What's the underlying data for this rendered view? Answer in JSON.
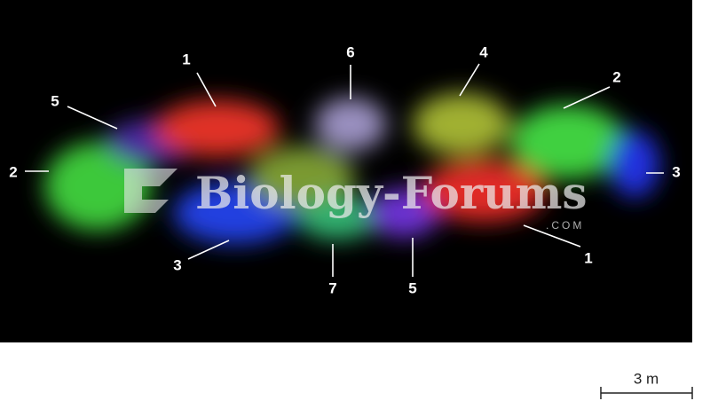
{
  "image": {
    "labels": [
      "1",
      "6",
      "4",
      "2",
      "5",
      "2",
      "3",
      "3",
      "7",
      "5",
      "1"
    ],
    "watermark": {
      "text": "Biology-Forums",
      "suffix": ".COM"
    },
    "scale_bar": {
      "label": "3 m"
    }
  }
}
